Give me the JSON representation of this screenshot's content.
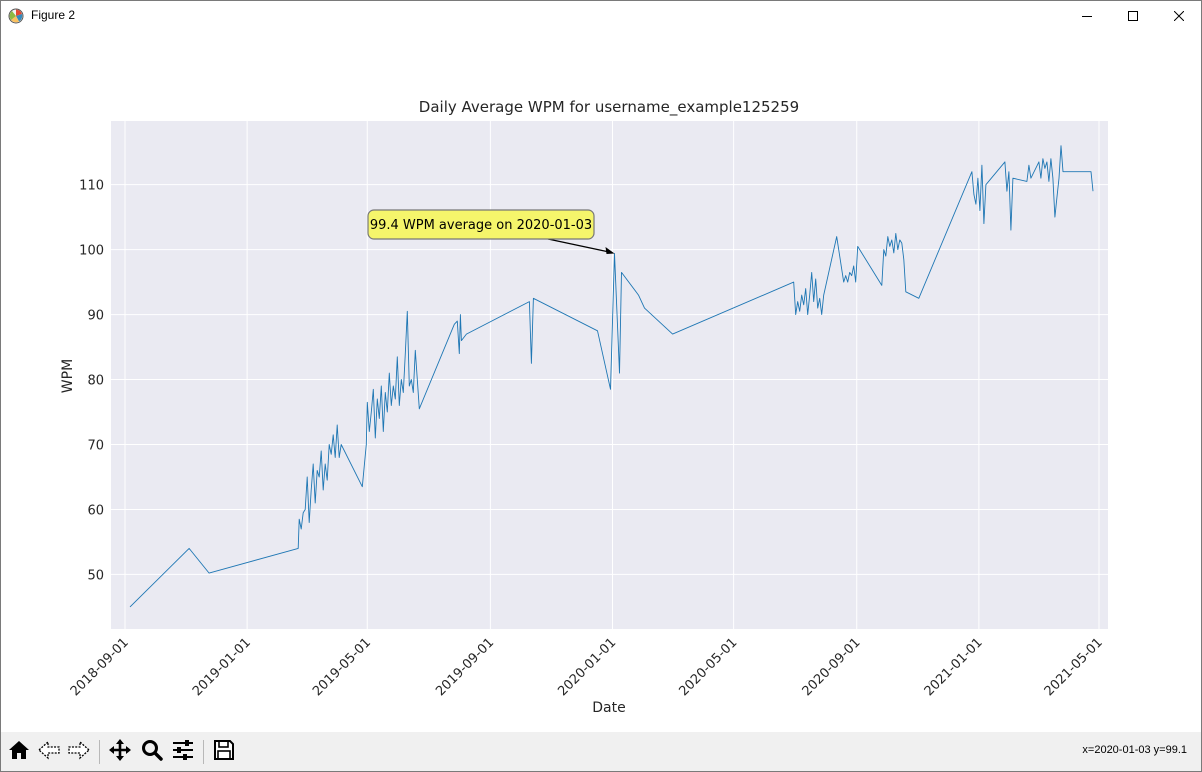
{
  "window": {
    "title": "Figure 2"
  },
  "icons": {
    "app": "matplotlib-icon",
    "minimize": "minimize-icon",
    "maximize": "maximize-icon",
    "close": "close-icon",
    "home": "home-icon",
    "back": "back-arrow-icon",
    "forward": "forward-arrow-icon",
    "pan": "pan-move-icon",
    "zoom": "zoom-magnifier-icon",
    "configure": "configure-subplots-icon",
    "save": "save-disk-icon"
  },
  "status": {
    "text": "x=2020-01-03 y=99.1"
  },
  "chart_data": {
    "type": "line",
    "title": "Daily Average WPM for username_example125259",
    "xlabel": "Date",
    "ylabel": "WPM",
    "x_tick_labels": [
      "2018-09-01",
      "2019-01-01",
      "2019-05-01",
      "2019-09-01",
      "2020-01-01",
      "2020-05-01",
      "2020-09-01",
      "2021-01-01",
      "2021-05-01"
    ],
    "y_ticks": [
      50,
      60,
      70,
      80,
      90,
      100,
      110
    ],
    "xlim": [
      "2018-08-18",
      "2021-05-10"
    ],
    "ylim": [
      41.6,
      119.8
    ],
    "grid": true,
    "background": "#eaeaf2",
    "line_color": "#1f77b4",
    "annotation": {
      "text": "99.4 WPM average on 2020-01-03",
      "x": "2020-01-03",
      "y": 99.4,
      "box_color": "#f5f56b"
    },
    "series": [
      {
        "points": [
          [
            "2018-09-06",
            45.0
          ],
          [
            "2018-11-04",
            54.0
          ],
          [
            "2018-11-24",
            50.2
          ],
          [
            "2019-02-21",
            54.0
          ],
          [
            "2019-02-22",
            58.5
          ],
          [
            "2019-02-24",
            57.0
          ],
          [
            "2019-02-26",
            59.5
          ],
          [
            "2019-02-28",
            60.0
          ],
          [
            "2019-03-02",
            65.0
          ],
          [
            "2019-03-04",
            58.0
          ],
          [
            "2019-03-06",
            63.0
          ],
          [
            "2019-03-08",
            67.0
          ],
          [
            "2019-03-10",
            61.0
          ],
          [
            "2019-03-12",
            66.0
          ],
          [
            "2019-03-14",
            65.0
          ],
          [
            "2019-03-16",
            69.0
          ],
          [
            "2019-03-18",
            63.0
          ],
          [
            "2019-03-20",
            67.0
          ],
          [
            "2019-03-22",
            64.5
          ],
          [
            "2019-03-24",
            70.0
          ],
          [
            "2019-03-26",
            68.5
          ],
          [
            "2019-03-28",
            71.5
          ],
          [
            "2019-03-30",
            68.0
          ],
          [
            "2019-04-01",
            73.0
          ],
          [
            "2019-04-03",
            68.0
          ],
          [
            "2019-04-05",
            70.0
          ],
          [
            "2019-04-26",
            63.5
          ],
          [
            "2019-04-30",
            70.0
          ],
          [
            "2019-05-01",
            76.5
          ],
          [
            "2019-05-03",
            72.0
          ],
          [
            "2019-05-05",
            75.0
          ],
          [
            "2019-05-07",
            78.5
          ],
          [
            "2019-05-09",
            71.0
          ],
          [
            "2019-05-11",
            77.0
          ],
          [
            "2019-05-13",
            74.0
          ],
          [
            "2019-05-15",
            79.0
          ],
          [
            "2019-05-17",
            72.0
          ],
          [
            "2019-05-19",
            78.0
          ],
          [
            "2019-05-21",
            75.0
          ],
          [
            "2019-05-23",
            81.0
          ],
          [
            "2019-05-25",
            76.0
          ],
          [
            "2019-05-27",
            79.0
          ],
          [
            "2019-05-29",
            77.0
          ],
          [
            "2019-05-31",
            83.5
          ],
          [
            "2019-06-02",
            76.0
          ],
          [
            "2019-06-04",
            80.0
          ],
          [
            "2019-06-06",
            78.0
          ],
          [
            "2019-06-08",
            84.0
          ],
          [
            "2019-06-10",
            90.5
          ],
          [
            "2019-06-12",
            79.0
          ],
          [
            "2019-06-14",
            80.0
          ],
          [
            "2019-06-16",
            78.0
          ],
          [
            "2019-06-18",
            84.5
          ],
          [
            "2019-06-22",
            75.5
          ],
          [
            "2019-07-27",
            88.5
          ],
          [
            "2019-07-30",
            89.0
          ],
          [
            "2019-08-01",
            84.0
          ],
          [
            "2019-08-02",
            90.0
          ],
          [
            "2019-08-03",
            86.0
          ],
          [
            "2019-08-08",
            87.0
          ],
          [
            "2019-10-10",
            92.0
          ],
          [
            "2019-10-12",
            82.5
          ],
          [
            "2019-10-14",
            92.5
          ],
          [
            "2019-12-17",
            87.5
          ],
          [
            "2019-12-30",
            78.5
          ],
          [
            "2020-01-03",
            99.4
          ],
          [
            "2020-01-08",
            81.0
          ],
          [
            "2020-01-10",
            96.5
          ],
          [
            "2020-01-27",
            93.0
          ],
          [
            "2020-02-02",
            91.0
          ],
          [
            "2020-03-01",
            87.0
          ],
          [
            "2020-06-30",
            95.0
          ],
          [
            "2020-07-02",
            90.0
          ],
          [
            "2020-07-04",
            92.0
          ],
          [
            "2020-07-06",
            90.5
          ],
          [
            "2020-07-08",
            93.0
          ],
          [
            "2020-07-10",
            91.5
          ],
          [
            "2020-07-12",
            94.0
          ],
          [
            "2020-07-14",
            90.0
          ],
          [
            "2020-07-16",
            93.0
          ],
          [
            "2020-07-18",
            96.5
          ],
          [
            "2020-07-20",
            92.0
          ],
          [
            "2020-07-22",
            95.5
          ],
          [
            "2020-07-24",
            91.0
          ],
          [
            "2020-07-26",
            92.5
          ],
          [
            "2020-07-28",
            90.0
          ],
          [
            "2020-07-30",
            93.0
          ],
          [
            "2020-08-12",
            102.0
          ],
          [
            "2020-08-19",
            95.0
          ],
          [
            "2020-08-21",
            96.0
          ],
          [
            "2020-08-23",
            95.0
          ],
          [
            "2020-08-25",
            96.5
          ],
          [
            "2020-08-27",
            96.0
          ],
          [
            "2020-08-29",
            97.5
          ],
          [
            "2020-08-31",
            95.0
          ],
          [
            "2020-09-02",
            100.5
          ],
          [
            "2020-09-26",
            94.5
          ],
          [
            "2020-09-28",
            100.0
          ],
          [
            "2020-09-30",
            99.0
          ],
          [
            "2020-10-02",
            102.0
          ],
          [
            "2020-10-04",
            100.5
          ],
          [
            "2020-10-06",
            101.5
          ],
          [
            "2020-10-08",
            99.5
          ],
          [
            "2020-10-10",
            102.5
          ],
          [
            "2020-10-12",
            100.0
          ],
          [
            "2020-10-14",
            101.5
          ],
          [
            "2020-10-16",
            101.0
          ],
          [
            "2020-10-18",
            98.5
          ],
          [
            "2020-10-20",
            93.5
          ],
          [
            "2020-11-02",
            92.5
          ],
          [
            "2020-12-25",
            112.0
          ],
          [
            "2020-12-27",
            108.5
          ],
          [
            "2020-12-29",
            107.0
          ],
          [
            "2020-12-31",
            111.0
          ],
          [
            "2021-01-02",
            106.0
          ],
          [
            "2021-01-04",
            113.0
          ],
          [
            "2021-01-06",
            104.0
          ],
          [
            "2021-01-08",
            110.0
          ],
          [
            "2021-01-27",
            113.5
          ],
          [
            "2021-01-29",
            109.0
          ],
          [
            "2021-01-31",
            112.0
          ],
          [
            "2021-02-02",
            103.0
          ],
          [
            "2021-02-04",
            111.0
          ],
          [
            "2021-02-18",
            110.5
          ],
          [
            "2021-02-20",
            113.0
          ],
          [
            "2021-02-22",
            111.0
          ],
          [
            "2021-03-02",
            113.5
          ],
          [
            "2021-03-04",
            111.0
          ],
          [
            "2021-03-06",
            114.0
          ],
          [
            "2021-03-08",
            112.5
          ],
          [
            "2021-03-10",
            113.5
          ],
          [
            "2021-03-12",
            110.5
          ],
          [
            "2021-03-14",
            114.0
          ],
          [
            "2021-03-16",
            111.0
          ],
          [
            "2021-03-18",
            105.0
          ],
          [
            "2021-03-20",
            108.0
          ],
          [
            "2021-03-22",
            111.0
          ],
          [
            "2021-03-24",
            116.0
          ],
          [
            "2021-03-26",
            112.0
          ],
          [
            "2021-04-23",
            112.0
          ],
          [
            "2021-04-25",
            109.0
          ]
        ]
      }
    ]
  }
}
